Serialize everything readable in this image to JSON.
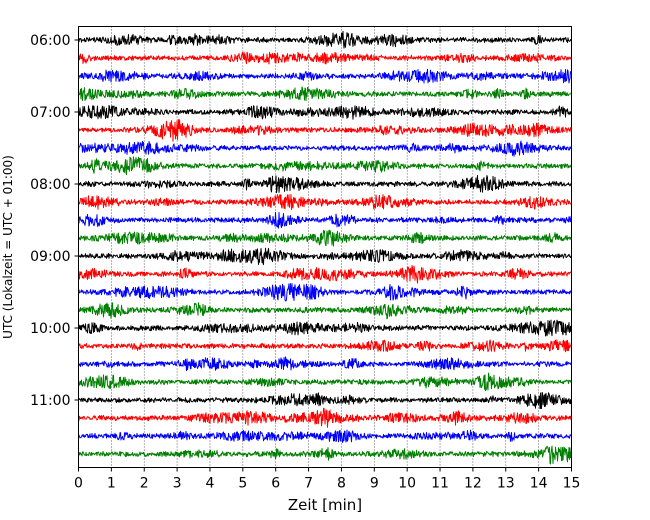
{
  "chart_data": {
    "type": "line",
    "title": "",
    "xlabel": "Zeit  [min]",
    "ylabel": "UTC (Lokalzeit = UTC + 01:00)",
    "xlim": [
      0,
      15
    ],
    "x_ticks": [
      "0",
      "1",
      "2",
      "3",
      "4",
      "5",
      "6",
      "7",
      "8",
      "9",
      "10",
      "11",
      "12",
      "13",
      "14",
      "15"
    ],
    "y_tick_labels": [
      "06:00",
      "07:00",
      "08:00",
      "09:00",
      "10:00",
      "11:00"
    ],
    "trace_start_times": [
      "06:00",
      "06:15",
      "06:30",
      "06:45",
      "07:00",
      "07:15",
      "07:30",
      "07:45",
      "08:00",
      "08:15",
      "08:30",
      "08:45",
      "09:00",
      "09:15",
      "09:30",
      "09:45",
      "10:00",
      "10:15",
      "10:30",
      "10:45",
      "11:00",
      "11:15",
      "11:30",
      "11:45"
    ],
    "trace_colors": [
      "#000000",
      "#ff0000",
      "#0000ff",
      "#008000"
    ],
    "trace_minutes": 15,
    "grid": "vertical dotted",
    "legend": "none"
  }
}
